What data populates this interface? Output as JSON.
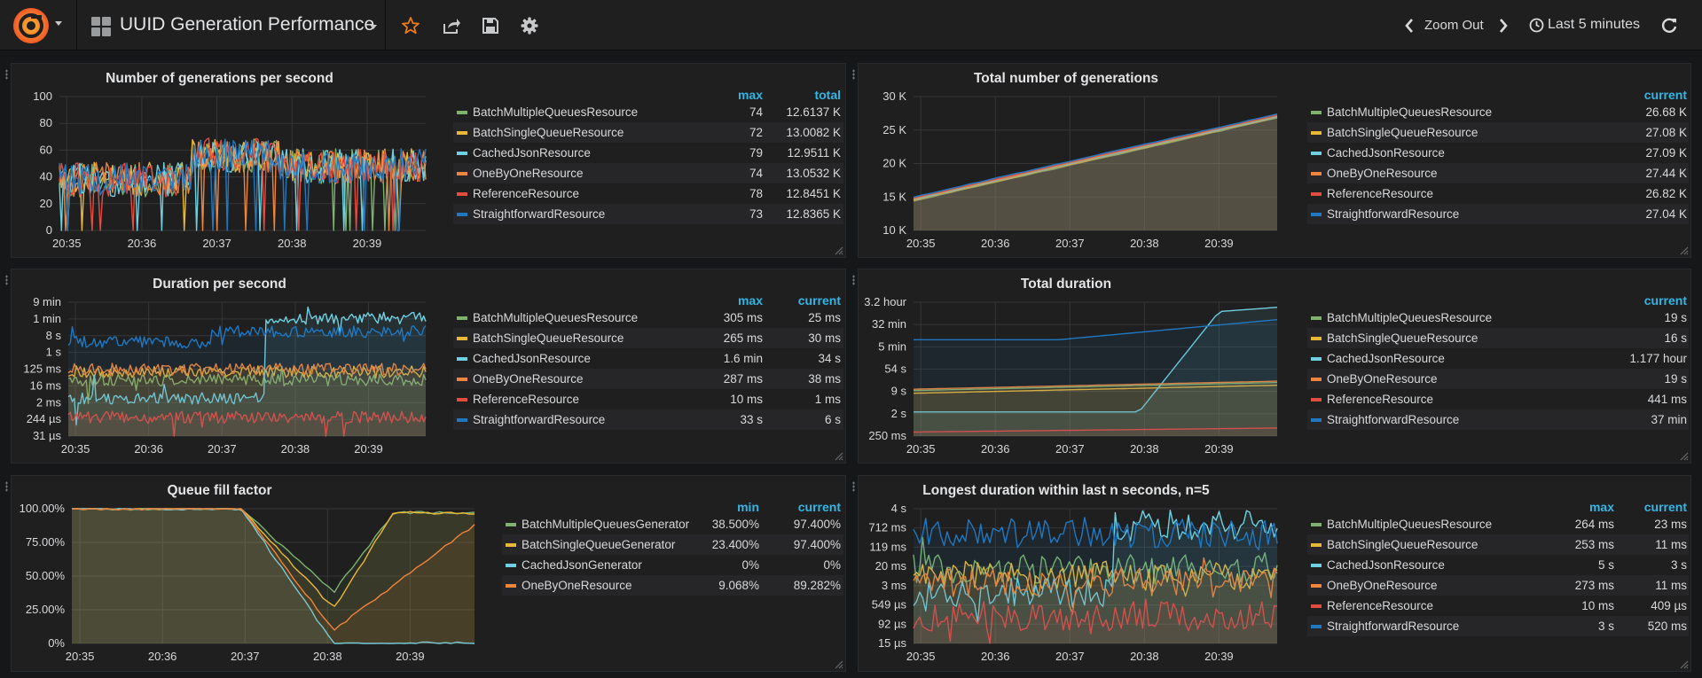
{
  "header": {
    "dashboard_title": "UUID Generation Performance",
    "zoom_out_label": "Zoom Out",
    "time_range_label": "Last 5 minutes",
    "icons": [
      "grafana-logo-icon",
      "dashboard-grid-icon",
      "star-icon",
      "share-icon",
      "save-icon",
      "settings-icon",
      "chevron-left-icon",
      "chevron-right-icon",
      "clock-icon",
      "refresh-icon"
    ],
    "accent": "#eb7b18"
  },
  "colors": {
    "green": "#7eb26d",
    "yellow": "#eab839",
    "cyan": "#6ed0e0",
    "orange": "#ef843c",
    "red": "#e24d42",
    "blue": "#1f78c1",
    "legend_header": "#33b5e5"
  },
  "panels": [
    {
      "title": "Number of generations per second",
      "y_ticks": [
        "100",
        "80",
        "60",
        "40",
        "20",
        "0"
      ],
      "x_ticks": [
        "20:35",
        "20:36",
        "20:37",
        "20:38",
        "20:39"
      ],
      "columns": [
        "max",
        "total"
      ],
      "legend": [
        {
          "name": "BatchMultipleQueuesResource",
          "color": "#7eb26d",
          "v1": "74",
          "v2": "12.6137 K"
        },
        {
          "name": "BatchSingleQueueResource",
          "color": "#eab839",
          "v1": "72",
          "v2": "13.0082 K"
        },
        {
          "name": "CachedJsonResource",
          "color": "#6ed0e0",
          "v1": "79",
          "v2": "12.9511 K"
        },
        {
          "name": "OneByOneResource",
          "color": "#ef843c",
          "v1": "74",
          "v2": "13.0532 K"
        },
        {
          "name": "ReferenceResource",
          "color": "#e24d42",
          "v1": "78",
          "v2": "12.8451 K"
        },
        {
          "name": "StraightforwardResource",
          "color": "#1f78c1",
          "v1": "73",
          "v2": "12.8365 K"
        }
      ]
    },
    {
      "title": "Total number of generations",
      "y_ticks": [
        "30 K",
        "25 K",
        "20 K",
        "15 K",
        "10 K"
      ],
      "x_ticks": [
        "20:35",
        "20:36",
        "20:37",
        "20:38",
        "20:39"
      ],
      "columns": [
        "current"
      ],
      "legend": [
        {
          "name": "BatchMultipleQueuesResource",
          "color": "#7eb26d",
          "v1": "26.68 K"
        },
        {
          "name": "BatchSingleQueueResource",
          "color": "#eab839",
          "v1": "27.08 K"
        },
        {
          "name": "CachedJsonResource",
          "color": "#6ed0e0",
          "v1": "27.09 K"
        },
        {
          "name": "OneByOneResource",
          "color": "#ef843c",
          "v1": "27.44 K"
        },
        {
          "name": "ReferenceResource",
          "color": "#e24d42",
          "v1": "26.82 K"
        },
        {
          "name": "StraightforwardResource",
          "color": "#1f78c1",
          "v1": "27.04 K"
        }
      ]
    },
    {
      "title": "Duration per second",
      "y_ticks": [
        "9 min",
        "1 min",
        "8 s",
        "1 s",
        "125 ms",
        "16 ms",
        "2 ms",
        "244 µs",
        "31 µs"
      ],
      "x_ticks": [
        "20:35",
        "20:36",
        "20:37",
        "20:38",
        "20:39"
      ],
      "columns": [
        "max",
        "current"
      ],
      "legend": [
        {
          "name": "BatchMultipleQueuesResource",
          "color": "#7eb26d",
          "v1": "305 ms",
          "v2": "25 ms"
        },
        {
          "name": "BatchSingleQueueResource",
          "color": "#eab839",
          "v1": "265 ms",
          "v2": "30 ms"
        },
        {
          "name": "CachedJsonResource",
          "color": "#6ed0e0",
          "v1": "1.6 min",
          "v2": "34 s"
        },
        {
          "name": "OneByOneResource",
          "color": "#ef843c",
          "v1": "287 ms",
          "v2": "38 ms"
        },
        {
          "name": "ReferenceResource",
          "color": "#e24d42",
          "v1": "10 ms",
          "v2": "1 ms"
        },
        {
          "name": "StraightforwardResource",
          "color": "#1f78c1",
          "v1": "33 s",
          "v2": "6 s"
        }
      ]
    },
    {
      "title": "Total duration",
      "y_ticks": [
        "3.2 hour",
        "32 min",
        "5 min",
        "54 s",
        "9 s",
        "2 s",
        "250 ms"
      ],
      "x_ticks": [
        "20:35",
        "20:36",
        "20:37",
        "20:38",
        "20:39"
      ],
      "columns": [
        "current"
      ],
      "legend": [
        {
          "name": "BatchMultipleQueuesResource",
          "color": "#7eb26d",
          "v1": "19 s"
        },
        {
          "name": "BatchSingleQueueResource",
          "color": "#eab839",
          "v1": "16 s"
        },
        {
          "name": "CachedJsonResource",
          "color": "#6ed0e0",
          "v1": "1.177 hour"
        },
        {
          "name": "OneByOneResource",
          "color": "#ef843c",
          "v1": "19 s"
        },
        {
          "name": "ReferenceResource",
          "color": "#e24d42",
          "v1": "441 ms"
        },
        {
          "name": "StraightforwardResource",
          "color": "#1f78c1",
          "v1": "37 min"
        }
      ]
    },
    {
      "title": "Queue fill factor",
      "y_ticks": [
        "100.00%",
        "75.00%",
        "50.00%",
        "25.00%",
        "0%"
      ],
      "x_ticks": [
        "20:35",
        "20:36",
        "20:37",
        "20:38",
        "20:39"
      ],
      "columns": [
        "min",
        "current"
      ],
      "legend": [
        {
          "name": "BatchMultipleQueuesGenerator",
          "color": "#7eb26d",
          "v1": "38.500%",
          "v2": "97.400%"
        },
        {
          "name": "BatchSingleQueueGenerator",
          "color": "#eab839",
          "v1": "23.400%",
          "v2": "97.400%"
        },
        {
          "name": "CachedJsonGenerator",
          "color": "#6ed0e0",
          "v1": "0%",
          "v2": "0%"
        },
        {
          "name": "OneByOneResource",
          "color": "#ef843c",
          "v1": "9.068%",
          "v2": "89.282%"
        }
      ]
    },
    {
      "title": "Longest duration within last n seconds, n=5",
      "y_ticks": [
        "4 s",
        "712 ms",
        "119 ms",
        "20 ms",
        "3 ms",
        "549 µs",
        "92 µs",
        "15 µs"
      ],
      "x_ticks": [
        "20:35",
        "20:36",
        "20:37",
        "20:38",
        "20:39"
      ],
      "columns": [
        "max",
        "current"
      ],
      "legend": [
        {
          "name": "BatchMultipleQueuesResource",
          "color": "#7eb26d",
          "v1": "264 ms",
          "v2": "23 ms"
        },
        {
          "name": "BatchSingleQueueResource",
          "color": "#eab839",
          "v1": "253 ms",
          "v2": "11 ms"
        },
        {
          "name": "CachedJsonResource",
          "color": "#6ed0e0",
          "v1": "5 s",
          "v2": "3 s"
        },
        {
          "name": "OneByOneResource",
          "color": "#ef843c",
          "v1": "273 ms",
          "v2": "11 ms"
        },
        {
          "name": "ReferenceResource",
          "color": "#e24d42",
          "v1": "10 ms",
          "v2": "409 µs"
        },
        {
          "name": "StraightforwardResource",
          "color": "#1f78c1",
          "v1": "3 s",
          "v2": "520 ms"
        }
      ]
    }
  ],
  "chart_data": [
    {
      "type": "line",
      "title": "Number of generations per second",
      "ylim": [
        0,
        100
      ],
      "x": [
        "20:35",
        "20:36",
        "20:37",
        "20:38",
        "20:39"
      ],
      "series": [
        {
          "name": "BatchMultipleQueuesResource",
          "values": [
            38,
            36,
            60,
            55,
            50
          ]
        },
        {
          "name": "BatchSingleQueueResource",
          "values": [
            40,
            38,
            62,
            56,
            48
          ]
        },
        {
          "name": "CachedJsonResource",
          "values": [
            39,
            37,
            61,
            57,
            49
          ]
        },
        {
          "name": "OneByOneResource",
          "values": [
            41,
            39,
            60,
            58,
            47
          ]
        },
        {
          "name": "ReferenceResource",
          "values": [
            37,
            36,
            59,
            55,
            46
          ]
        },
        {
          "name": "StraightforwardResource",
          "values": [
            38,
            37,
            58,
            56,
            48
          ]
        }
      ]
    },
    {
      "type": "area",
      "title": "Total number of generations",
      "ylim": [
        10000,
        30000
      ],
      "x": [
        "20:35",
        "20:36",
        "20:37",
        "20:38",
        "20:39"
      ],
      "series": [
        {
          "name": "BatchMultipleQueuesResource",
          "values": [
            14500,
            17000,
            19500,
            22500,
            25500
          ]
        },
        {
          "name": "BatchSingleQueueResource",
          "values": [
            14700,
            17200,
            19800,
            22800,
            25900
          ]
        },
        {
          "name": "CachedJsonResource",
          "values": [
            14600,
            17100,
            19700,
            22700,
            25800
          ]
        },
        {
          "name": "OneByOneResource",
          "values": [
            14800,
            17300,
            19900,
            22900,
            26100
          ]
        },
        {
          "name": "ReferenceResource",
          "values": [
            14500,
            17000,
            19600,
            22600,
            25600
          ]
        },
        {
          "name": "StraightforwardResource",
          "values": [
            14600,
            17100,
            19700,
            22700,
            25800
          ]
        }
      ]
    },
    {
      "type": "line",
      "title": "Duration per second",
      "log_scale": true,
      "y_ticks": [
        "9 min",
        "1 min",
        "8 s",
        "1 s",
        "125 ms",
        "16 ms",
        "2 ms",
        "244 µs",
        "31 µs"
      ],
      "x": [
        "20:35",
        "20:36",
        "20:37",
        "20:38",
        "20:39"
      ],
      "series": [
        {
          "name": "BatchMultipleQueuesResource",
          "values": [
            "25 ms",
            "25 ms",
            "25 ms",
            "25 ms",
            "25 ms"
          ]
        },
        {
          "name": "BatchSingleQueueResource",
          "values": [
            "30 ms",
            "30 ms",
            "30 ms",
            "30 ms",
            "30 ms"
          ]
        },
        {
          "name": "CachedJsonResource",
          "values": [
            "5 ms",
            "5 ms",
            "34 s",
            "34 s",
            "34 s"
          ]
        },
        {
          "name": "OneByOneResource",
          "values": [
            "38 ms",
            "38 ms",
            "38 ms",
            "38 ms",
            "38 ms"
          ]
        },
        {
          "name": "ReferenceResource",
          "values": [
            "1 ms",
            "1 ms",
            "1 ms",
            "1 ms",
            "1 ms"
          ]
        },
        {
          "name": "StraightforwardResource",
          "values": [
            "2 s",
            "2 s",
            "8 s",
            "6 s",
            "6 s"
          ]
        }
      ]
    },
    {
      "type": "area",
      "title": "Total duration",
      "log_scale": true,
      "y_ticks": [
        "3.2 hour",
        "32 min",
        "5 min",
        "54 s",
        "9 s",
        "2 s",
        "250 ms"
      ],
      "x": [
        "20:35",
        "20:36",
        "20:37",
        "20:38",
        "20:39"
      ],
      "series": [
        {
          "name": "BatchMultipleQueuesResource",
          "values": [
            "8 s",
            "10 s",
            "12 s",
            "15 s",
            "19 s"
          ]
        },
        {
          "name": "BatchSingleQueueResource",
          "values": [
            "7 s",
            "9 s",
            "11 s",
            "13 s",
            "16 s"
          ]
        },
        {
          "name": "CachedJsonResource",
          "values": [
            "2 s",
            "2 s",
            "2 s",
            "30 min",
            "1.177 hour"
          ]
        },
        {
          "name": "OneByOneResource",
          "values": [
            "8 s",
            "10 s",
            "12 s",
            "15 s",
            "19 s"
          ]
        },
        {
          "name": "ReferenceResource",
          "values": [
            "250 ms",
            "300 ms",
            "350 ms",
            "400 ms",
            "441 ms"
          ]
        },
        {
          "name": "StraightforwardResource",
          "values": [
            "12 min",
            "13 min",
            "16 min",
            "30 min",
            "37 min"
          ]
        }
      ]
    },
    {
      "type": "area",
      "title": "Queue fill factor",
      "ylim": [
        0,
        100
      ],
      "x": [
        "20:35",
        "20:36",
        "20:37",
        "20:38",
        "20:39"
      ],
      "series": [
        {
          "name": "BatchMultipleQueuesGenerator",
          "values": [
            100,
            100,
            70,
            45,
            97.4
          ]
        },
        {
          "name": "BatchSingleQueueGenerator",
          "values": [
            100,
            100,
            65,
            30,
            97.4
          ]
        },
        {
          "name": "CachedJsonGenerator",
          "values": [
            100,
            100,
            55,
            0,
            0
          ]
        },
        {
          "name": "OneByOneResource",
          "values": [
            100,
            100,
            60,
            15,
            89.282
          ]
        }
      ]
    },
    {
      "type": "line",
      "title": "Longest duration within last n seconds, n=5",
      "log_scale": true,
      "y_ticks": [
        "4 s",
        "712 ms",
        "119 ms",
        "20 ms",
        "3 ms",
        "549 µs",
        "92 µs",
        "15 µs"
      ],
      "x": [
        "20:35",
        "20:36",
        "20:37",
        "20:38",
        "20:39"
      ],
      "series": [
        {
          "name": "BatchMultipleQueuesResource",
          "values": [
            "20 ms",
            "20 ms",
            "20 ms",
            "20 ms",
            "23 ms"
          ]
        },
        {
          "name": "BatchSingleQueueResource",
          "values": [
            "15 ms",
            "15 ms",
            "15 ms",
            "15 ms",
            "11 ms"
          ]
        },
        {
          "name": "CachedJsonResource",
          "values": [
            "5 ms",
            "5 ms",
            "3 s",
            "3 s",
            "3 s"
          ]
        },
        {
          "name": "OneByOneResource",
          "values": [
            "10 ms",
            "10 ms",
            "10 ms",
            "10 ms",
            "11 ms"
          ]
        },
        {
          "name": "ReferenceResource",
          "values": [
            "500 µs",
            "500 µs",
            "500 µs",
            "500 µs",
            "409 µs"
          ]
        },
        {
          "name": "StraightforwardResource",
          "values": [
            "500 ms",
            "500 ms",
            "600 ms",
            "600 ms",
            "520 ms"
          ]
        }
      ]
    }
  ]
}
